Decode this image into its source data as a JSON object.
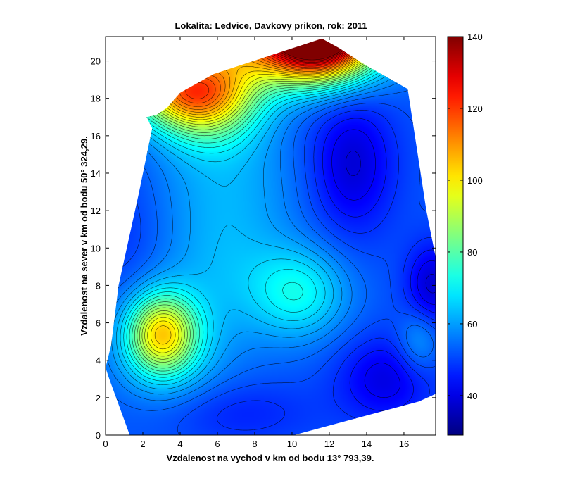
{
  "chart_data": {
    "type": "heatmap",
    "title": "Lokalita: Ledvice, Davkovy prikon, rok: 2011",
    "xlabel": "Vzdalenost na vychod v km od bodu 13° 793,39.",
    "ylabel": "Vzdalenost na sever v km od bodu 50° 324,29.",
    "xlim": [
      0,
      17.7
    ],
    "ylim": [
      0,
      21.3
    ],
    "xticks": [
      0,
      2,
      4,
      6,
      8,
      10,
      12,
      14,
      16
    ],
    "yticks": [
      0,
      2,
      4,
      6,
      8,
      10,
      12,
      14,
      16,
      18,
      20
    ],
    "colorbar": {
      "min": 29,
      "max": 140,
      "ticks": [
        40,
        60,
        80,
        100,
        120,
        140
      ],
      "colormap": "jet"
    },
    "region_outline": [
      [
        1.3,
        0
      ],
      [
        10.1,
        0
      ],
      [
        16.8,
        1.8
      ],
      [
        17.7,
        2.2
      ],
      [
        17.7,
        9.5
      ],
      [
        17.2,
        12
      ],
      [
        16.2,
        18.5
      ],
      [
        15.5,
        18.9
      ],
      [
        13.9,
        19.8
      ],
      [
        12.5,
        20.7
      ],
      [
        11.6,
        21.2
      ],
      [
        10.7,
        20.9
      ],
      [
        5.8,
        19.3
      ],
      [
        4.0,
        18.3
      ],
      [
        3.3,
        17.5
      ],
      [
        2.7,
        17.1
      ],
      [
        2.2,
        17.0
      ],
      [
        2.5,
        16.4
      ],
      [
        1.8,
        13.0
      ],
      [
        0.7,
        8.0
      ],
      [
        0.3,
        4.8
      ],
      [
        0,
        3.6
      ],
      [
        0.2,
        3.0
      ],
      [
        1.3,
        0
      ]
    ],
    "field_model": {
      "base": 52,
      "peaks": [
        {
          "x": 3.0,
          "y": 5.4,
          "amplitude": 42,
          "sx": 1.3,
          "sy": 1.5
        },
        {
          "x": 3.5,
          "y": 4.6,
          "amplitude": 10,
          "sx": 2.2,
          "sy": 2.2
        },
        {
          "x": 11.5,
          "y": 21.5,
          "amplitude": 85,
          "sx": 2.0,
          "sy": 1.6
        },
        {
          "x": 8.5,
          "y": 21.0,
          "amplitude": 45,
          "sx": 4.0,
          "sy": 1.6
        },
        {
          "x": 4.5,
          "y": 18.4,
          "amplitude": 50,
          "sx": 2.3,
          "sy": 1.3
        },
        {
          "x": 5.5,
          "y": 17.0,
          "amplitude": 20,
          "sx": 2.0,
          "sy": 1.5
        },
        {
          "x": 10.4,
          "y": 7.6,
          "amplitude": 18,
          "sx": 1.8,
          "sy": 1.7
        },
        {
          "x": 6.5,
          "y": 9.5,
          "amplitude": 10,
          "sx": 2.5,
          "sy": 3.0
        },
        {
          "x": 6.5,
          "y": 14.0,
          "amplitude": 6,
          "sx": 3.0,
          "sy": 2.0
        },
        {
          "x": 16.8,
          "y": 5.0,
          "amplitude": 10,
          "sx": 0.8,
          "sy": 1.2
        },
        {
          "x": 13.2,
          "y": 14.5,
          "amplitude": -14,
          "sx": 1.6,
          "sy": 2.6
        },
        {
          "x": 15.0,
          "y": 3.0,
          "amplitude": -12,
          "sx": 1.8,
          "sy": 1.6
        },
        {
          "x": 17.5,
          "y": 8.0,
          "amplitude": -14,
          "sx": 1.0,
          "sy": 1.6
        },
        {
          "x": 7.0,
          "y": 1.2,
          "amplitude": -6,
          "sx": 3.0,
          "sy": 1.2
        },
        {
          "x": 1.0,
          "y": 11.0,
          "amplitude": -4,
          "sx": 1.5,
          "sy": 3.0
        }
      ]
    },
    "contour_step": 3
  }
}
